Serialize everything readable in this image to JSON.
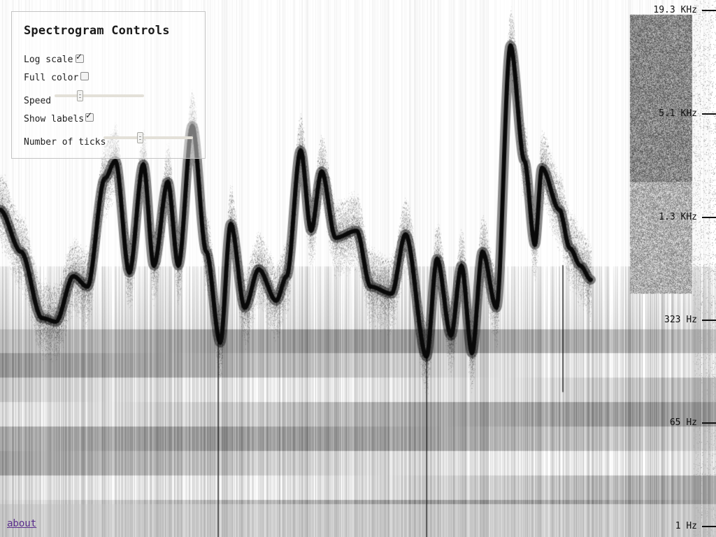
{
  "controls": {
    "title": "Spectrogram Controls",
    "log_scale": {
      "label": "Log scale",
      "checked": true
    },
    "full_color": {
      "label": "Full color",
      "checked": false
    },
    "speed": {
      "label": "Speed",
      "value": 0.27
    },
    "show_labels": {
      "label": "Show labels",
      "checked": true
    },
    "number_of_ticks": {
      "label": "Number of ticks",
      "value": 0.4
    }
  },
  "axis": {
    "ticks": [
      "19.3 KHz",
      "5.1 KHz",
      "1.3 KHz",
      "323 Hz",
      "65 Hz",
      "1 Hz"
    ]
  },
  "footer": {
    "about_label": "about"
  },
  "colors": {
    "ink": "#000000",
    "background": "#ffffff",
    "link": "#5a2d8c"
  }
}
